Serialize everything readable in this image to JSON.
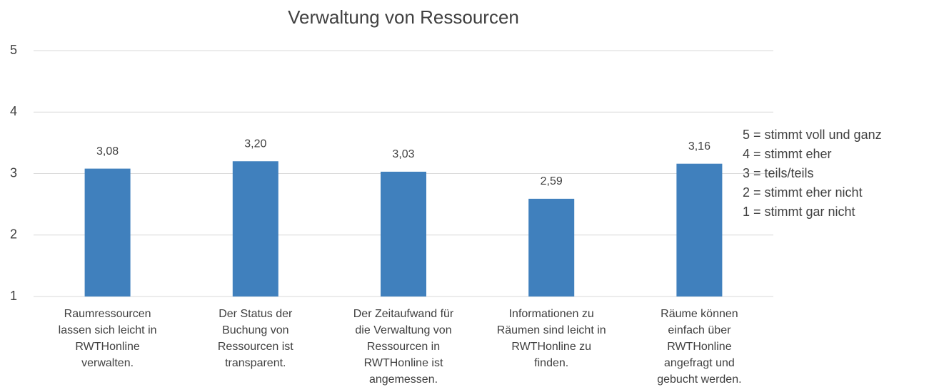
{
  "chart_data": {
    "type": "bar",
    "title": "Verwaltung von Ressourcen",
    "categories": [
      "Raumressourcen\nlassen sich leicht in\nRWTHonline\nverwalten.",
      "Der Status der\nBuchung von\nRessourcen ist\ntransparent.",
      "Der Zeitaufwand für\ndie Verwaltung von\nRessourcen in\nRWTHonline ist\nangemessen.",
      "Informationen zu\nRäumen sind leicht in\nRWTHonline zu\nfinden.",
      "Räume können\neinfach über\nRWTHonline\nangefragt und\ngebucht werden."
    ],
    "values": [
      3.08,
      3.2,
      3.03,
      2.59,
      3.16
    ],
    "value_labels": [
      "3,08",
      "3,20",
      "3,03",
      "2,59",
      "3,16"
    ],
    "color": "#4080bd",
    "ylim": [
      1,
      5
    ],
    "yticks": [
      1,
      2,
      3,
      4,
      5
    ],
    "grid": true,
    "annotations": [
      "5 = stimmt voll und ganz",
      "4 = stimmt eher",
      "3 = teils/teils",
      "2 = stimmt eher nicht",
      "1 = stimmt gar nicht"
    ]
  }
}
